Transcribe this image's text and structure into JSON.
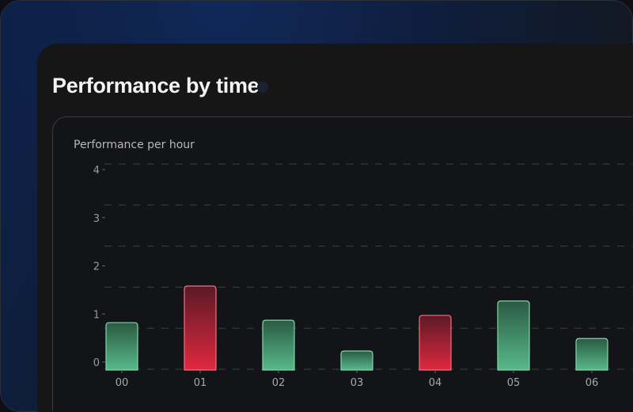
{
  "header": {
    "title": "Performance by time"
  },
  "chart_data": {
    "type": "bar",
    "title": "Performance per hour",
    "categories": [
      "00",
      "01",
      "02",
      "03",
      "04",
      "05",
      "06"
    ],
    "values": [
      0.82,
      1.58,
      0.87,
      0.23,
      0.97,
      1.27,
      0.49
    ],
    "colors": [
      "positive",
      "negative",
      "positive",
      "positive",
      "negative",
      "positive",
      "positive"
    ],
    "yticks": [
      "0",
      "1",
      "2",
      "3",
      "4"
    ],
    "ylim": [
      0,
      4
    ],
    "grid": true,
    "palette": {
      "positive_top": "#2a5a43",
      "positive_bottom": "#58b98a",
      "positive_border": "#7fd8a8",
      "negative_top": "#5a1a26",
      "negative_bottom": "#e0283f",
      "negative_border": "#f07080"
    }
  }
}
